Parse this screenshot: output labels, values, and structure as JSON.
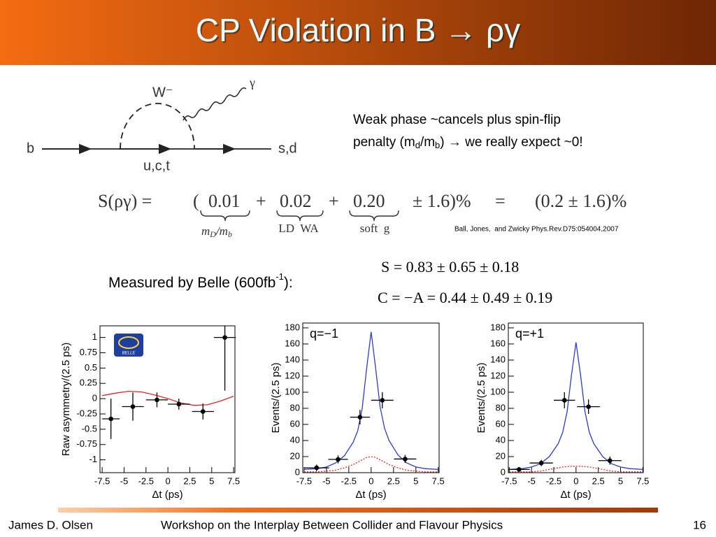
{
  "header": {
    "title": "CP Violation in B → ργ"
  },
  "diagram": {
    "boson": "W⁻",
    "photon": "γ",
    "quark_in": "b",
    "loop": "u,c,t",
    "quark_out": "s,d"
  },
  "note": {
    "line1": "Weak phase ~cancels plus spin-flip",
    "line2": [
      "penalty (m",
      "d",
      "/m",
      "b",
      ") → we really expect ~0!"
    ]
  },
  "equation": {
    "lhs": "S(ργ) =",
    "open": "(",
    "terms": [
      "0.01",
      "0.02",
      "0.20"
    ],
    "plus": "+",
    "error": "± 1.6)%",
    "equals": "=",
    "result": "(0.2 ± 1.6)%",
    "braces": [
      [
        "m",
        "D",
        "/m",
        "b"
      ],
      [
        "LD  WA"
      ],
      [
        "soft  g"
      ]
    ]
  },
  "reference": "Ball, Jones,  and Zwicky Phys.Rev.D75:054004,2007",
  "measured": {
    "label": [
      "Measured by Belle (600fb",
      "-1",
      "):"
    ],
    "S": "S = 0.83 ± 0.65 ± 0.18",
    "C": "C = −A = 0.44 ± 0.49 ± 0.19"
  },
  "charts": [
    {
      "type": "scatter",
      "logo": "BELLE",
      "xlabel": "Δt (ps)",
      "ylabel": "Raw asymmetry/(2.5 ps)",
      "xlim": [
        -7.75,
        7.65
      ],
      "ylim": [
        -1.21,
        1.19
      ],
      "xticks": [
        -7.5,
        -5,
        -2.5,
        0,
        2.5,
        5,
        7.5
      ],
      "yticks": [
        -1,
        -0.75,
        -0.5,
        -0.25,
        0,
        0.25,
        0.5,
        0.75,
        1
      ],
      "points": {
        "x": [
          -6.5,
          -4,
          -1.25,
          1.25,
          4,
          6.5
        ],
        "values": [
          -0.33,
          -0.13,
          -0.02,
          -0.09,
          -0.21,
          1.0
        ],
        "xerr": [
          1,
          1.25,
          1.25,
          1.25,
          1.25,
          1.25
        ],
        "yerr": [
          0.33,
          0.23,
          0.12,
          0.09,
          0.13,
          0.87
        ],
        "color": "#000000"
      },
      "series": [
        {
          "color": "#e8231c",
          "style": "solid",
          "x": [
            -7.5,
            -6,
            -4.5,
            -3,
            -1.5,
            0,
            1.5,
            3,
            4.5,
            6,
            7.5
          ],
          "values": [
            0.05,
            0.09,
            0.12,
            0.11,
            0.06,
            0,
            -0.07,
            -0.11,
            -0.1,
            -0.04,
            0.04
          ]
        }
      ]
    },
    {
      "type": "scatter",
      "annotation": "q=−1",
      "xlabel": "Δt (ps)",
      "ylabel": "Events/(2.5 ps)",
      "xlim": [
        -7.65,
        7.6
      ],
      "ylim": [
        0,
        186
      ],
      "xticks": [
        -7.5,
        -5,
        -2.5,
        0,
        2.5,
        5,
        7.5
      ],
      "yticks": [
        0,
        20,
        40,
        60,
        80,
        100,
        120,
        140,
        160,
        180
      ],
      "points": {
        "x": [
          -6.1,
          -3.7,
          -1.25,
          1.25,
          3.8
        ],
        "values": [
          6,
          16.5,
          69,
          90,
          17
        ],
        "xerr": [
          1.4,
          1.1,
          1.1,
          1.25,
          1.25
        ],
        "yerr": [
          4,
          5,
          9,
          10,
          5
        ],
        "color": "#000000"
      },
      "series": [
        {
          "color": "#2a3bd6",
          "style": "solid",
          "x": [
            -7.5,
            -6,
            -5,
            -4,
            -3,
            -2,
            -1.5,
            -1,
            -0.5,
            0,
            0.5,
            1,
            1.5,
            2,
            3,
            4,
            5,
            6,
            7.5
          ],
          "values": [
            4,
            5,
            7,
            12,
            21,
            38,
            52,
            80,
            130,
            175,
            130,
            82,
            55,
            40,
            22,
            12,
            7,
            5,
            4
          ]
        },
        {
          "color": "#e8231c",
          "style": "dotted",
          "x": [
            -7.5,
            -6,
            -5,
            -4,
            -3,
            -2,
            -1.5,
            -1,
            -0.5,
            0,
            0.5,
            1,
            1.5,
            2,
            3,
            4,
            5,
            6,
            7.5
          ],
          "values": [
            1,
            1,
            2,
            3,
            6,
            10,
            13,
            16,
            19,
            20,
            19,
            16,
            13,
            10,
            6,
            3,
            2,
            1,
            1
          ]
        }
      ]
    },
    {
      "type": "scatter",
      "annotation": "q=+1",
      "xlabel": "Δt (ps)",
      "ylabel": "Events/(2.5 ps)",
      "xlim": [
        -7.6,
        7.55
      ],
      "ylim": [
        0,
        186
      ],
      "xticks": [
        -7.5,
        -5,
        -2.5,
        0,
        2.5,
        5,
        7.5
      ],
      "yticks": [
        0,
        20,
        40,
        60,
        80,
        100,
        120,
        140,
        160,
        180
      ],
      "points": {
        "x": [
          -6.4,
          -3.9,
          -1.3,
          1.4,
          3.8
        ],
        "values": [
          4,
          12,
          90,
          82,
          15
        ],
        "xerr": [
          1.2,
          1.3,
          1.2,
          1.3,
          1.3
        ],
        "yerr": [
          3,
          4,
          10,
          9,
          5
        ],
        "color": "#000000"
      },
      "series": [
        {
          "color": "#2a3bd6",
          "style": "solid",
          "x": [
            -7.5,
            -6,
            -5,
            -4,
            -3,
            -2,
            -1.5,
            -1,
            -0.5,
            0,
            0.5,
            1,
            1.5,
            2,
            3,
            4,
            5,
            6,
            7.5
          ],
          "values": [
            4,
            5,
            7,
            11,
            20,
            36,
            50,
            76,
            122,
            162,
            122,
            76,
            50,
            36,
            20,
            11,
            7,
            5,
            4
          ]
        },
        {
          "color": "#e8231c",
          "style": "dotted",
          "x": [
            -7.5,
            -6,
            -5,
            -4,
            -3,
            -2,
            -1.5,
            -1,
            -0.5,
            0,
            0.5,
            1,
            1.5,
            2,
            3,
            4,
            5,
            6,
            7.5
          ],
          "values": [
            1,
            1,
            1,
            2,
            4,
            6,
            7,
            7.5,
            8,
            8,
            8,
            7.5,
            7,
            6,
            4,
            2,
            1,
            1,
            1
          ]
        }
      ]
    }
  ],
  "footer": {
    "author": "James D. Olsen",
    "event": "Workshop on the Interplay Between Collider and Flavour Physics",
    "page": "16"
  }
}
